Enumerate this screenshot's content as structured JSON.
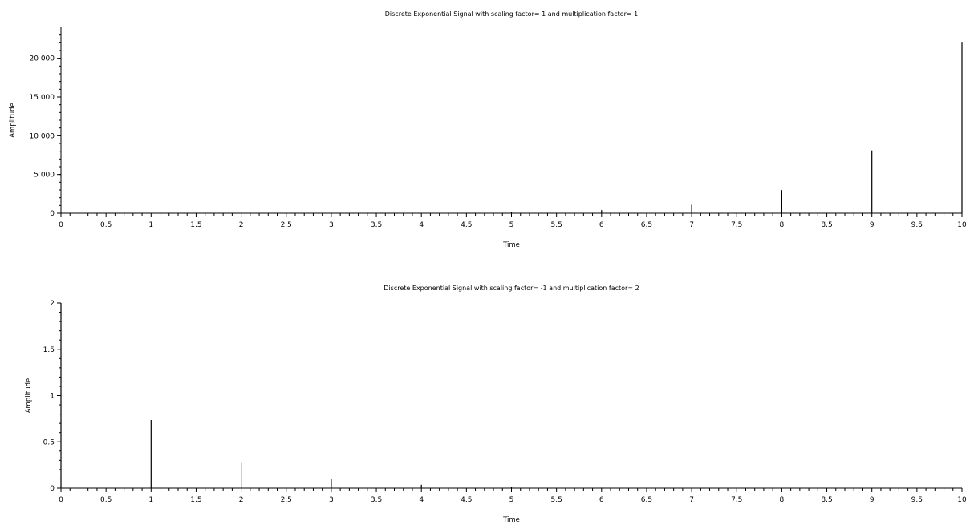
{
  "chart_data": [
    {
      "type": "stem",
      "title": "Discrete Exponential Signal with scaling factor= 1 and multiplication factor= 1",
      "xlabel": "Time",
      "ylabel": "Amplitude",
      "xlim": [
        0,
        10
      ],
      "ylim": [
        0,
        24000
      ],
      "grid": false,
      "x_ticks": [
        0,
        0.5,
        1,
        1.5,
        2,
        2.5,
        3,
        3.5,
        4,
        4.5,
        5,
        5.5,
        6,
        6.5,
        7,
        7.5,
        8,
        8.5,
        9,
        9.5,
        10
      ],
      "x_tick_labels": [
        "0",
        "0.5",
        "1",
        "1.5",
        "2",
        "2.5",
        "3",
        "3.5",
        "4",
        "4.5",
        "5",
        "5.5",
        "6",
        "6.5",
        "7",
        "7.5",
        "8",
        "8.5",
        "9",
        "9.5",
        "10"
      ],
      "y_ticks": [
        0,
        5000,
        10000,
        15000,
        20000
      ],
      "y_tick_labels": [
        "0",
        "5 000",
        "10 000",
        "15 000",
        "20 000"
      ],
      "x": [
        0,
        1,
        2,
        3,
        4,
        5,
        6,
        7,
        8,
        9,
        10
      ],
      "values": [
        1,
        2.7,
        7.4,
        20,
        55,
        148,
        403,
        1097,
        2981,
        8103,
        22026
      ]
    },
    {
      "type": "stem",
      "title": "Discrete Exponential Signal with scaling factor= -1 and multiplication factor= 2",
      "xlabel": "Time",
      "ylabel": "Amplitude",
      "xlim": [
        0,
        10
      ],
      "ylim": [
        0,
        2
      ],
      "grid": false,
      "x_ticks": [
        0,
        0.5,
        1,
        1.5,
        2,
        2.5,
        3,
        3.5,
        4,
        4.5,
        5,
        5.5,
        6,
        6.5,
        7,
        7.5,
        8,
        8.5,
        9,
        9.5,
        10
      ],
      "x_tick_labels": [
        "0",
        "0.5",
        "1",
        "1.5",
        "2",
        "2.5",
        "3",
        "3.5",
        "4",
        "4.5",
        "5",
        "5.5",
        "6",
        "6.5",
        "7",
        "7.5",
        "8",
        "8.5",
        "9",
        "9.5",
        "10"
      ],
      "y_ticks": [
        0,
        0.5,
        1,
        1.5,
        2
      ],
      "y_tick_labels": [
        "0",
        "0.5",
        "1",
        "1.5",
        "2"
      ],
      "x": [
        0,
        1,
        2,
        3,
        4,
        5,
        6,
        7,
        8,
        9,
        10
      ],
      "values": [
        2,
        0.736,
        0.271,
        0.0996,
        0.0366,
        0.0135,
        0.005,
        0.0018,
        0.0007,
        0.0002,
        0.0001
      ]
    }
  ]
}
